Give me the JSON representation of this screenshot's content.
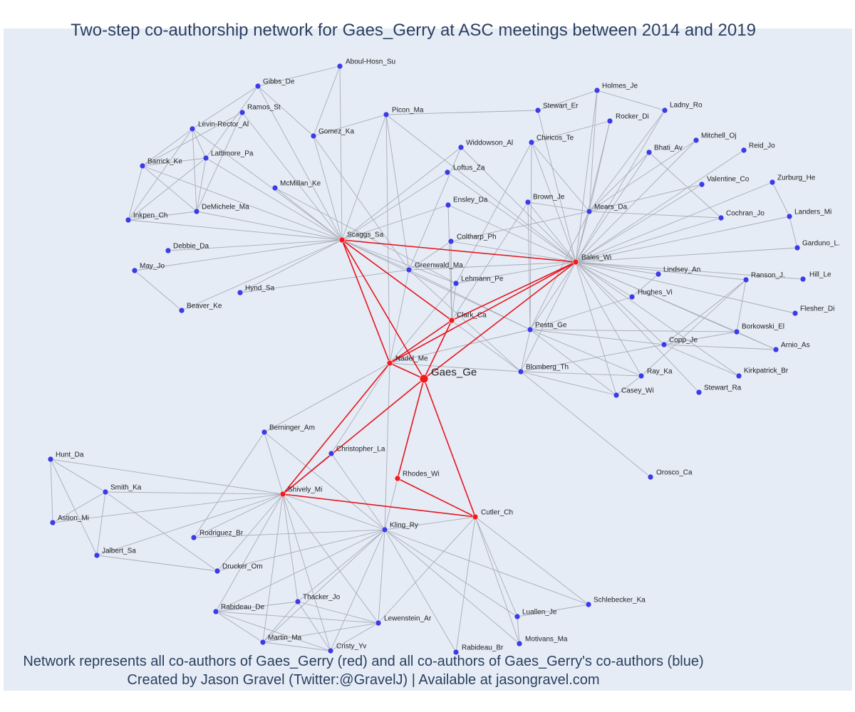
{
  "title": "Two-step co-authorship network for Gaes_Gerry at ASC meetings between 2014 and 2019",
  "captions": {
    "line1": "Network represents all co-authors of Gaes_Gerry (red) and all co-authors of Gaes_Gerry's co-authors (blue)",
    "line2": "Created by Jason Gravel (Twitter:@GravelJ) | Available at jasongravel.com"
  },
  "colors": {
    "background": "#e5ecf6",
    "direct_coauthor": "#f21b1b",
    "indirect_coauthor": "#3c3ce6",
    "direct_edge": "#e8141c",
    "indirect_edge": "#a9adb8",
    "text": "#2a3f5f"
  },
  "nodes": [
    {
      "id": "Gaes_Ge",
      "group": "focal"
    },
    {
      "id": "Scaggs_Sa",
      "group": "direct"
    },
    {
      "id": "Bales_Wi",
      "group": "direct"
    },
    {
      "id": "Clark_Ca",
      "group": "direct"
    },
    {
      "id": "Nadel_Me",
      "group": "direct"
    },
    {
      "id": "Shively_Mi",
      "group": "direct"
    },
    {
      "id": "Rhodes_Wi",
      "group": "direct"
    },
    {
      "id": "Cutler_Ch",
      "group": "direct"
    },
    {
      "id": "Aboul-Hosn_Su",
      "group": "indirect"
    },
    {
      "id": "Gibbs_De",
      "group": "indirect"
    },
    {
      "id": "Ramos_St",
      "group": "indirect"
    },
    {
      "id": "Levin-Rector_Al",
      "group": "indirect"
    },
    {
      "id": "Lattimore_Pa",
      "group": "indirect"
    },
    {
      "id": "Barrick_Ke",
      "group": "indirect"
    },
    {
      "id": "Gomez_Ka",
      "group": "indirect"
    },
    {
      "id": "McMillan_Ke",
      "group": "indirect"
    },
    {
      "id": "DeMichele_Ma",
      "group": "indirect"
    },
    {
      "id": "Inkpen_Ch",
      "group": "indirect"
    },
    {
      "id": "Debbie_Da",
      "group": "indirect"
    },
    {
      "id": "May_Jo",
      "group": "indirect"
    },
    {
      "id": "Hynd_Sa",
      "group": "indirect"
    },
    {
      "id": "Beaver_Ke",
      "group": "indirect"
    },
    {
      "id": "Picon_Ma",
      "group": "indirect"
    },
    {
      "id": "Widdowson_Al",
      "group": "indirect"
    },
    {
      "id": "Loftus_Za",
      "group": "indirect"
    },
    {
      "id": "Ensley_Da",
      "group": "indirect"
    },
    {
      "id": "Coltharp_Ph",
      "group": "indirect"
    },
    {
      "id": "Greenwald_Ma",
      "group": "indirect"
    },
    {
      "id": "Lehmann_Pe",
      "group": "indirect"
    },
    {
      "id": "Stewart_Er",
      "group": "indirect"
    },
    {
      "id": "Holmes_Je",
      "group": "indirect"
    },
    {
      "id": "Ladny_Ro",
      "group": "indirect"
    },
    {
      "id": "Rocker_Di",
      "group": "indirect"
    },
    {
      "id": "Chiricos_Te",
      "group": "indirect"
    },
    {
      "id": "Mitchell_Oj",
      "group": "indirect"
    },
    {
      "id": "Bhati_Av",
      "group": "indirect"
    },
    {
      "id": "Reid_Jo",
      "group": "indirect"
    },
    {
      "id": "Valentine_Co",
      "group": "indirect"
    },
    {
      "id": "Zurburg_He",
      "group": "indirect"
    },
    {
      "id": "Brown_Je",
      "group": "indirect"
    },
    {
      "id": "Mears_Da",
      "group": "indirect"
    },
    {
      "id": "Cochran_Jo",
      "group": "indirect"
    },
    {
      "id": "Landers_Mi",
      "group": "indirect"
    },
    {
      "id": "Garduno_L.",
      "group": "indirect"
    },
    {
      "id": "Lindsey_An",
      "group": "indirect"
    },
    {
      "id": "Ranson_J.",
      "group": "indirect"
    },
    {
      "id": "Hill_Le",
      "group": "indirect"
    },
    {
      "id": "Hughes_Vi",
      "group": "indirect"
    },
    {
      "id": "Flesher_Di",
      "group": "indirect"
    },
    {
      "id": "Borkowski_El",
      "group": "indirect"
    },
    {
      "id": "Arnio_As",
      "group": "indirect"
    },
    {
      "id": "Pesta_Ge",
      "group": "indirect"
    },
    {
      "id": "Copp_Je",
      "group": "indirect"
    },
    {
      "id": "Kirkpatrick_Br",
      "group": "indirect"
    },
    {
      "id": "Blomberg_Th",
      "group": "indirect"
    },
    {
      "id": "Ray_Ka",
      "group": "indirect"
    },
    {
      "id": "Casey_Wi",
      "group": "indirect"
    },
    {
      "id": "Stewart_Ra",
      "group": "indirect"
    },
    {
      "id": "Orosco_Ca",
      "group": "indirect"
    },
    {
      "id": "Berninger_Am",
      "group": "indirect"
    },
    {
      "id": "Christopher_La",
      "group": "indirect"
    },
    {
      "id": "Hunt_Da",
      "group": "indirect"
    },
    {
      "id": "Smith_Ka",
      "group": "indirect"
    },
    {
      "id": "Astion_Mi",
      "group": "indirect"
    },
    {
      "id": "Jalbert_Sa",
      "group": "indirect"
    },
    {
      "id": "Rodriguez_Br",
      "group": "indirect"
    },
    {
      "id": "Kling_Ry",
      "group": "indirect"
    },
    {
      "id": "Drucker_Om",
      "group": "indirect"
    },
    {
      "id": "Schlebecker_Ka",
      "group": "indirect"
    },
    {
      "id": "Thacker_Jo",
      "group": "indirect"
    },
    {
      "id": "Rabideau_De",
      "group": "indirect"
    },
    {
      "id": "Lewenstein_Ar",
      "group": "indirect"
    },
    {
      "id": "Luallen_Je",
      "group": "indirect"
    },
    {
      "id": "Martin_Ma",
      "group": "indirect"
    },
    {
      "id": "Motivans_Ma",
      "group": "indirect"
    },
    {
      "id": "Cristy_Yv",
      "group": "indirect"
    },
    {
      "id": "Rabideau_Br",
      "group": "indirect"
    }
  ],
  "direct_edges": [
    [
      "Gaes_Ge",
      "Scaggs_Sa"
    ],
    [
      "Gaes_Ge",
      "Bales_Wi"
    ],
    [
      "Gaes_Ge",
      "Clark_Ca"
    ],
    [
      "Gaes_Ge",
      "Nadel_Me"
    ],
    [
      "Gaes_Ge",
      "Shively_Mi"
    ],
    [
      "Gaes_Ge",
      "Rhodes_Wi"
    ],
    [
      "Gaes_Ge",
      "Cutler_Ch"
    ],
    [
      "Scaggs_Sa",
      "Bales_Wi"
    ],
    [
      "Scaggs_Sa",
      "Clark_Ca"
    ],
    [
      "Scaggs_Sa",
      "Nadel_Me"
    ],
    [
      "Bales_Wi",
      "Clark_Ca"
    ],
    [
      "Bales_Wi",
      "Nadel_Me"
    ],
    [
      "Clark_Ca",
      "Nadel_Me"
    ],
    [
      "Nadel_Me",
      "Shively_Mi"
    ],
    [
      "Shively_Mi",
      "Cutler_Ch"
    ],
    [
      "Rhodes_Wi",
      "Cutler_Ch"
    ]
  ],
  "indirect_edges": [
    [
      "Scaggs_Sa",
      "Aboul-Hosn_Su"
    ],
    [
      "Scaggs_Sa",
      "Gibbs_De"
    ],
    [
      "Scaggs_Sa",
      "Ramos_St"
    ],
    [
      "Scaggs_Sa",
      "Levin-Rector_Al"
    ],
    [
      "Scaggs_Sa",
      "Lattimore_Pa"
    ],
    [
      "Scaggs_Sa",
      "Barrick_Ke"
    ],
    [
      "Scaggs_Sa",
      "Gomez_Ka"
    ],
    [
      "Scaggs_Sa",
      "McMillan_Ke"
    ],
    [
      "Scaggs_Sa",
      "DeMichele_Ma"
    ],
    [
      "Scaggs_Sa",
      "Inkpen_Ch"
    ],
    [
      "Scaggs_Sa",
      "Debbie_Da"
    ],
    [
      "Scaggs_Sa",
      "May_Jo"
    ],
    [
      "Scaggs_Sa",
      "Hynd_Sa"
    ],
    [
      "Scaggs_Sa",
      "Beaver_Ke"
    ],
    [
      "Scaggs_Sa",
      "Picon_Ma"
    ],
    [
      "Scaggs_Sa",
      "Widdowson_Al"
    ],
    [
      "Scaggs_Sa",
      "Loftus_Za"
    ],
    [
      "Scaggs_Sa",
      "Ensley_Da"
    ],
    [
      "Scaggs_Sa",
      "Greenwald_Ma"
    ],
    [
      "Scaggs_Sa",
      "Lehmann_Pe"
    ],
    [
      "Scaggs_Sa",
      "Pesta_Ge"
    ],
    [
      "Scaggs_Sa",
      "Blomberg_Th"
    ],
    [
      "Gibbs_De",
      "Aboul-Hosn_Su"
    ],
    [
      "Gibbs_De",
      "Levin-Rector_Al"
    ],
    [
      "Gibbs_De",
      "Lattimore_Pa"
    ],
    [
      "Gibbs_De",
      "Gomez_Ka"
    ],
    [
      "Ramos_St",
      "DeMichele_Ma"
    ],
    [
      "Ramos_St",
      "Barrick_Ke"
    ],
    [
      "Levin-Rector_Al",
      "Barrick_Ke"
    ],
    [
      "Levin-Rector_Al",
      "Inkpen_Ch"
    ],
    [
      "Levin-Rector_Al",
      "Lattimore_Pa"
    ],
    [
      "Levin-Rector_Al",
      "DeMichele_Ma"
    ],
    [
      "Lattimore_Pa",
      "Barrick_Ke"
    ],
    [
      "Lattimore_Pa",
      "Inkpen_Ch"
    ],
    [
      "Lattimore_Pa",
      "DeMichele_Ma"
    ],
    [
      "Barrick_Ke",
      "Inkpen_Ch"
    ],
    [
      "Barrick_Ke",
      "DeMichele_Ma"
    ],
    [
      "Inkpen_Ch",
      "DeMichele_Ma"
    ],
    [
      "Aboul-Hosn_Su",
      "Gomez_Ka"
    ],
    [
      "Gomez_Ka",
      "Picon_Ma"
    ],
    [
      "Gomez_Ka",
      "Greenwald_Ma"
    ],
    [
      "McMillan_Ke",
      "Lehmann_Pe"
    ],
    [
      "May_Jo",
      "Beaver_Ke"
    ],
    [
      "Hynd_Sa",
      "Greenwald_Ma"
    ],
    [
      "Picon_Ma",
      "Stewart_Er"
    ],
    [
      "Picon_Ma",
      "Bales_Wi"
    ],
    [
      "Picon_Ma",
      "Nadel_Me"
    ],
    [
      "Picon_Ma",
      "Greenwald_Ma"
    ],
    [
      "Widdowson_Al",
      "Bales_Wi"
    ],
    [
      "Widdowson_Al",
      "Greenwald_Ma"
    ],
    [
      "Loftus_Za",
      "Bales_Wi"
    ],
    [
      "Ensley_Da",
      "Bales_Wi"
    ],
    [
      "Ensley_Da",
      "Clark_Ca"
    ],
    [
      "Coltharp_Ph",
      "Bales_Wi"
    ],
    [
      "Coltharp_Ph",
      "Clark_Ca"
    ],
    [
      "Coltharp_Ph",
      "Greenwald_Ma"
    ],
    [
      "Greenwald_Ma",
      "Nadel_Me"
    ],
    [
      "Greenwald_Ma",
      "Bales_Wi"
    ],
    [
      "Greenwald_Ma",
      "Pesta_Ge"
    ],
    [
      "Greenwald_Ma",
      "Blomberg_Th"
    ],
    [
      "Lehmann_Pe",
      "Bales_Wi"
    ],
    [
      "Lehmann_Pe",
      "Clark_Ca"
    ],
    [
      "Lehmann_Pe",
      "Nadel_Me"
    ],
    [
      "Bales_Wi",
      "Stewart_Er"
    ],
    [
      "Bales_Wi",
      "Holmes_Je"
    ],
    [
      "Bales_Wi",
      "Ladny_Ro"
    ],
    [
      "Bales_Wi",
      "Rocker_Di"
    ],
    [
      "Bales_Wi",
      "Chiricos_Te"
    ],
    [
      "Bales_Wi",
      "Mitchell_Oj"
    ],
    [
      "Bales_Wi",
      "Bhati_Av"
    ],
    [
      "Bales_Wi",
      "Reid_Jo"
    ],
    [
      "Bales_Wi",
      "Valentine_Co"
    ],
    [
      "Bales_Wi",
      "Zurburg_He"
    ],
    [
      "Bales_Wi",
      "Brown_Je"
    ],
    [
      "Bales_Wi",
      "Mears_Da"
    ],
    [
      "Bales_Wi",
      "Cochran_Jo"
    ],
    [
      "Bales_Wi",
      "Landers_Mi"
    ],
    [
      "Bales_Wi",
      "Garduno_L."
    ],
    [
      "Bales_Wi",
      "Lindsey_An"
    ],
    [
      "Bales_Wi",
      "Ranson_J."
    ],
    [
      "Bales_Wi",
      "Hill_Le"
    ],
    [
      "Bales_Wi",
      "Hughes_Vi"
    ],
    [
      "Bales_Wi",
      "Flesher_Di"
    ],
    [
      "Bales_Wi",
      "Borkowski_El"
    ],
    [
      "Bales_Wi",
      "Arnio_As"
    ],
    [
      "Bales_Wi",
      "Pesta_Ge"
    ],
    [
      "Bales_Wi",
      "Copp_Je"
    ],
    [
      "Bales_Wi",
      "Kirkpatrick_Br"
    ],
    [
      "Bales_Wi",
      "Blomberg_Th"
    ],
    [
      "Bales_Wi",
      "Ray_Ka"
    ],
    [
      "Bales_Wi",
      "Casey_Wi"
    ],
    [
      "Bales_Wi",
      "Stewart_Ra"
    ],
    [
      "Stewart_Er",
      "Holmes_Je"
    ],
    [
      "Holmes_Je",
      "Ladny_Ro"
    ],
    [
      "Holmes_Je",
      "Mears_Da"
    ],
    [
      "Ladny_Ro",
      "Mears_Da"
    ],
    [
      "Rocker_Di",
      "Mears_Da"
    ],
    [
      "Rocker_Di",
      "Chiricos_Te"
    ],
    [
      "Chiricos_Te",
      "Mears_Da"
    ],
    [
      "Chiricos_Te",
      "Pesta_Ge"
    ],
    [
      "Chiricos_Te",
      "Lehmann_Pe"
    ],
    [
      "Mitchell_Oj",
      "Mears_Da"
    ],
    [
      "Bhati_Av",
      "Cochran_Jo"
    ],
    [
      "Bhati_Av",
      "Mears_Da"
    ],
    [
      "Mears_Da",
      "Valentine_Co"
    ],
    [
      "Mears_Da",
      "Cochran_Jo"
    ],
    [
      "Mears_Da",
      "Pesta_Ge"
    ],
    [
      "Mears_Da",
      "Coltharp_Ph"
    ],
    [
      "Brown_Je",
      "Pesta_Ge"
    ],
    [
      "Brown_Je",
      "Mears_Da"
    ],
    [
      "Brown_Je",
      "Clark_Ca"
    ],
    [
      "Zurburg_He",
      "Landers_Mi"
    ],
    [
      "Landers_Mi",
      "Garduno_L."
    ],
    [
      "Lindsey_An",
      "Hughes_Vi"
    ],
    [
      "Ranson_J.",
      "Borkowski_El"
    ],
    [
      "Ranson_J.",
      "Copp_Je"
    ],
    [
      "Ranson_J.",
      "Ray_Ka"
    ],
    [
      "Borkowski_El",
      "Arnio_As"
    ],
    [
      "Borkowski_El",
      "Copp_Je"
    ],
    [
      "Borkowski_El",
      "Pesta_Ge"
    ],
    [
      "Pesta_Ge",
      "Copp_Je"
    ],
    [
      "Pesta_Ge",
      "Blomberg_Th"
    ],
    [
      "Pesta_Ge",
      "Nadel_Me"
    ],
    [
      "Pesta_Ge",
      "Hughes_Vi"
    ],
    [
      "Pesta_Ge",
      "Ray_Ka"
    ],
    [
      "Copp_Je",
      "Kirkpatrick_Br"
    ],
    [
      "Copp_Je",
      "Arnio_As"
    ],
    [
      "Copp_Je",
      "Blomberg_Th"
    ],
    [
      "Blomberg_Th",
      "Ray_Ka"
    ],
    [
      "Blomberg_Th",
      "Casey_Wi"
    ],
    [
      "Blomberg_Th",
      "Orosco_Ca"
    ],
    [
      "Blomberg_Th",
      "Nadel_Me"
    ],
    [
      "Ray_Ka",
      "Casey_Wi"
    ],
    [
      "Casey_Wi",
      "Pesta_Ge"
    ],
    [
      "Nadel_Me",
      "Kling_Ry"
    ],
    [
      "Nadel_Me",
      "Christopher_La"
    ],
    [
      "Nadel_Me",
      "Berninger_Am"
    ],
    [
      "Shively_Mi",
      "Berninger_Am"
    ],
    [
      "Shively_Mi",
      "Christopher_La"
    ],
    [
      "Shively_Mi",
      "Hunt_Da"
    ],
    [
      "Shively_Mi",
      "Smith_Ka"
    ],
    [
      "Shively_Mi",
      "Astion_Mi"
    ],
    [
      "Shively_Mi",
      "Jalbert_Sa"
    ],
    [
      "Shively_Mi",
      "Rodriguez_Br"
    ],
    [
      "Shively_Mi",
      "Kling_Ry"
    ],
    [
      "Shively_Mi",
      "Drucker_Om"
    ],
    [
      "Shively_Mi",
      "Thacker_Jo"
    ],
    [
      "Shively_Mi",
      "Rabideau_De"
    ],
    [
      "Shively_Mi",
      "Lewenstein_Ar"
    ],
    [
      "Shively_Mi",
      "Martin_Ma"
    ],
    [
      "Shively_Mi",
      "Cristy_Yv"
    ],
    [
      "Hunt_Da",
      "Smith_Ka"
    ],
    [
      "Hunt_Da",
      "Astion_Mi"
    ],
    [
      "Hunt_Da",
      "Jalbert_Sa"
    ],
    [
      "Smith_Ka",
      "Astion_Mi"
    ],
    [
      "Smith_Ka",
      "Jalbert_Sa"
    ],
    [
      "Smith_Ka",
      "Drucker_Om"
    ],
    [
      "Jalbert_Sa",
      "Drucker_Om"
    ],
    [
      "Berninger_Am",
      "Kling_Ry"
    ],
    [
      "Berninger_Am",
      "Rodriguez_Br"
    ],
    [
      "Christopher_La",
      "Kling_Ry"
    ],
    [
      "Rhodes_Wi",
      "Kling_Ry"
    ],
    [
      "Cutler_Ch",
      "Kling_Ry"
    ],
    [
      "Cutler_Ch",
      "Rabideau_Br"
    ],
    [
      "Cutler_Ch",
      "Luallen_Je"
    ],
    [
      "Cutler_Ch",
      "Motivans_Ma"
    ],
    [
      "Cutler_Ch",
      "Schlebecker_Ka"
    ],
    [
      "Cutler_Ch",
      "Lewenstein_Ar"
    ],
    [
      "Kling_Ry",
      "Rodriguez_Br"
    ],
    [
      "Kling_Ry",
      "Drucker_Om"
    ],
    [
      "Kling_Ry",
      "Thacker_Jo"
    ],
    [
      "Kling_Ry",
      "Rabideau_De"
    ],
    [
      "Kling_Ry",
      "Lewenstein_Ar"
    ],
    [
      "Kling_Ry",
      "Martin_Ma"
    ],
    [
      "Kling_Ry",
      "Cristy_Yv"
    ],
    [
      "Kling_Ry",
      "Rabideau_Br"
    ],
    [
      "Kling_Ry",
      "Luallen_Je"
    ],
    [
      "Kling_Ry",
      "Motivans_Ma"
    ],
    [
      "Kling_Ry",
      "Schlebecker_Ka"
    ],
    [
      "Thacker_Jo",
      "Rabideau_De"
    ],
    [
      "Thacker_Jo",
      "Martin_Ma"
    ],
    [
      "Thacker_Jo",
      "Cristy_Yv"
    ],
    [
      "Thacker_Jo",
      "Lewenstein_Ar"
    ],
    [
      "Rabideau_De",
      "Martin_Ma"
    ],
    [
      "Rabideau_De",
      "Cristy_Yv"
    ],
    [
      "Rabideau_De",
      "Lewenstein_Ar"
    ],
    [
      "Martin_Ma",
      "Lewenstein_Ar"
    ],
    [
      "Martin_Ma",
      "Cristy_Yv"
    ],
    [
      "Cristy_Yv",
      "Lewenstein_Ar"
    ],
    [
      "Luallen_Je",
      "Motivans_Ma"
    ],
    [
      "Luallen_Je",
      "Schlebecker_Ka"
    ]
  ]
}
